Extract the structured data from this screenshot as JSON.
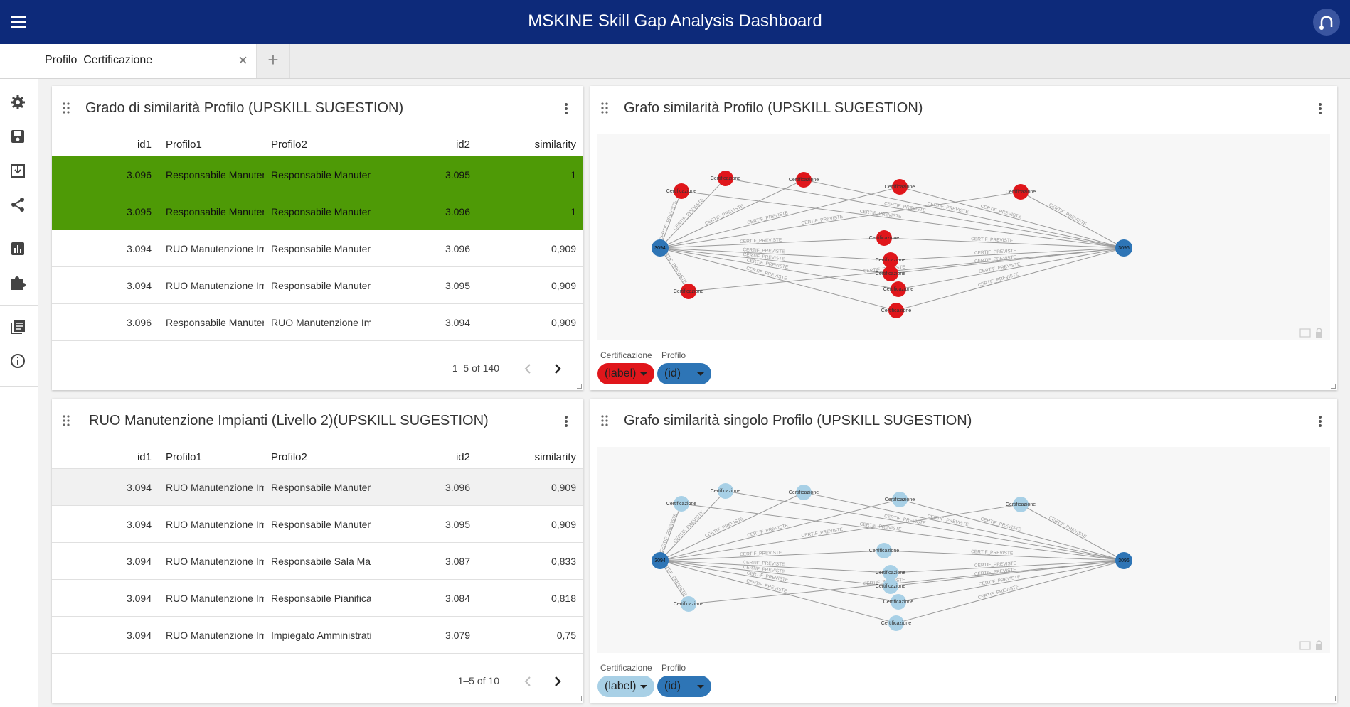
{
  "header": {
    "title": "MSKINE Skill Gap Analysis Dashboard"
  },
  "tabs": [
    {
      "label": "Profilo_Certificazione"
    }
  ],
  "panels": {
    "table1": {
      "title": "Grado di similarità Profilo (UPSKILL SUGESTION)",
      "columns": [
        "id1",
        "Profilo1",
        "Profilo2",
        "id2",
        "similarity"
      ],
      "rows": [
        [
          "3.096",
          "Responsabile Manutenzione",
          "Responsabile Manutenzione",
          "3.095",
          "1"
        ],
        [
          "3.095",
          "Responsabile Manutenzione",
          "Responsabile Manutenzione",
          "3.096",
          "1"
        ],
        [
          "3.094",
          "RUO Manutenzione Impianti",
          "Responsabile Manutenzione",
          "3.096",
          "0,909"
        ],
        [
          "3.094",
          "RUO Manutenzione Impianti",
          "Responsabile Manutenzione",
          "3.095",
          "0,909"
        ],
        [
          "3.096",
          "Responsabile Manutenzione",
          "RUO Manutenzione Impianti",
          "3.094",
          "0,909"
        ]
      ],
      "pagination": "1–5 of 140"
    },
    "table2": {
      "title": "RUO Manutenzione Impianti (Livello 2)(UPSKILL SUGESTION)",
      "columns": [
        "id1",
        "Profilo1",
        "Profilo2",
        "id2",
        "similarity"
      ],
      "rows": [
        [
          "3.094",
          "RUO Manutenzione Impianti",
          "Responsabile Manutenzione",
          "3.096",
          "0,909"
        ],
        [
          "3.094",
          "RUO Manutenzione Impianti",
          "Responsabile Manutenzione",
          "3.095",
          "0,909"
        ],
        [
          "3.094",
          "RUO Manutenzione Impianti",
          "Responsabile Sala Macchine",
          "3.087",
          "0,833"
        ],
        [
          "3.094",
          "RUO Manutenzione Impianti",
          "Responsabile Pianificazione",
          "3.084",
          "0,818"
        ],
        [
          "3.094",
          "RUO Manutenzione Impianti",
          "Impiegato Amministrativo",
          "3.079",
          "0,75"
        ]
      ],
      "pagination": "1–5 of 10"
    },
    "graph1": {
      "title": "Grafo similarità Profilo (UPSKILL SUGESTION)",
      "node_color": "#e0161b",
      "profile_color": "#2e75b6"
    },
    "graph2": {
      "title": "Grafo similarità singolo Profilo (UPSKILL SUGESTION)",
      "node_color": "#a8d0e6",
      "profile_color": "#2e75b6"
    }
  },
  "graph_labels": {
    "cert_node": "Certificazione",
    "edge": "CERTIF_PREVISTE",
    "profile_left": "3094",
    "profile_right": "3096"
  },
  "legend": {
    "cert_name": "Certificazione",
    "cert_chip": "(label)",
    "profile_name": "Profilo",
    "profile_chip": "(id)"
  }
}
